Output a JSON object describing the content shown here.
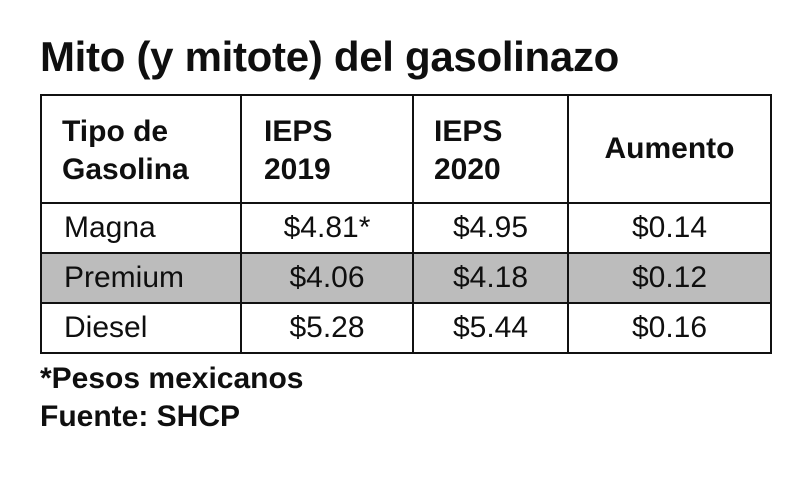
{
  "title": "Mito (y mitote) del gasolinazo",
  "table": {
    "headers": [
      {
        "line1": "Tipo de",
        "line2": "Gasolina"
      },
      {
        "line1": "IEPS",
        "line2": "2019"
      },
      {
        "line1": "IEPS",
        "line2": "2020"
      },
      {
        "line1": "Aumento",
        "line2": ""
      }
    ],
    "rows": [
      {
        "tipo": "Magna",
        "ieps2019": "$4.81*",
        "ieps2020": "$4.95",
        "aumento": "$0.14",
        "shaded": false
      },
      {
        "tipo": "Premium",
        "ieps2019": "$4.06",
        "ieps2020": "$4.18",
        "aumento": "$0.12",
        "shaded": true
      },
      {
        "tipo": "Diesel",
        "ieps2019": "$5.28",
        "ieps2020": "$5.44",
        "aumento": "$0.16",
        "shaded": false
      }
    ],
    "shade_color": "#bcbcbc"
  },
  "notes": {
    "footnote": "*Pesos mexicanos",
    "source": "Fuente: SHCP"
  }
}
